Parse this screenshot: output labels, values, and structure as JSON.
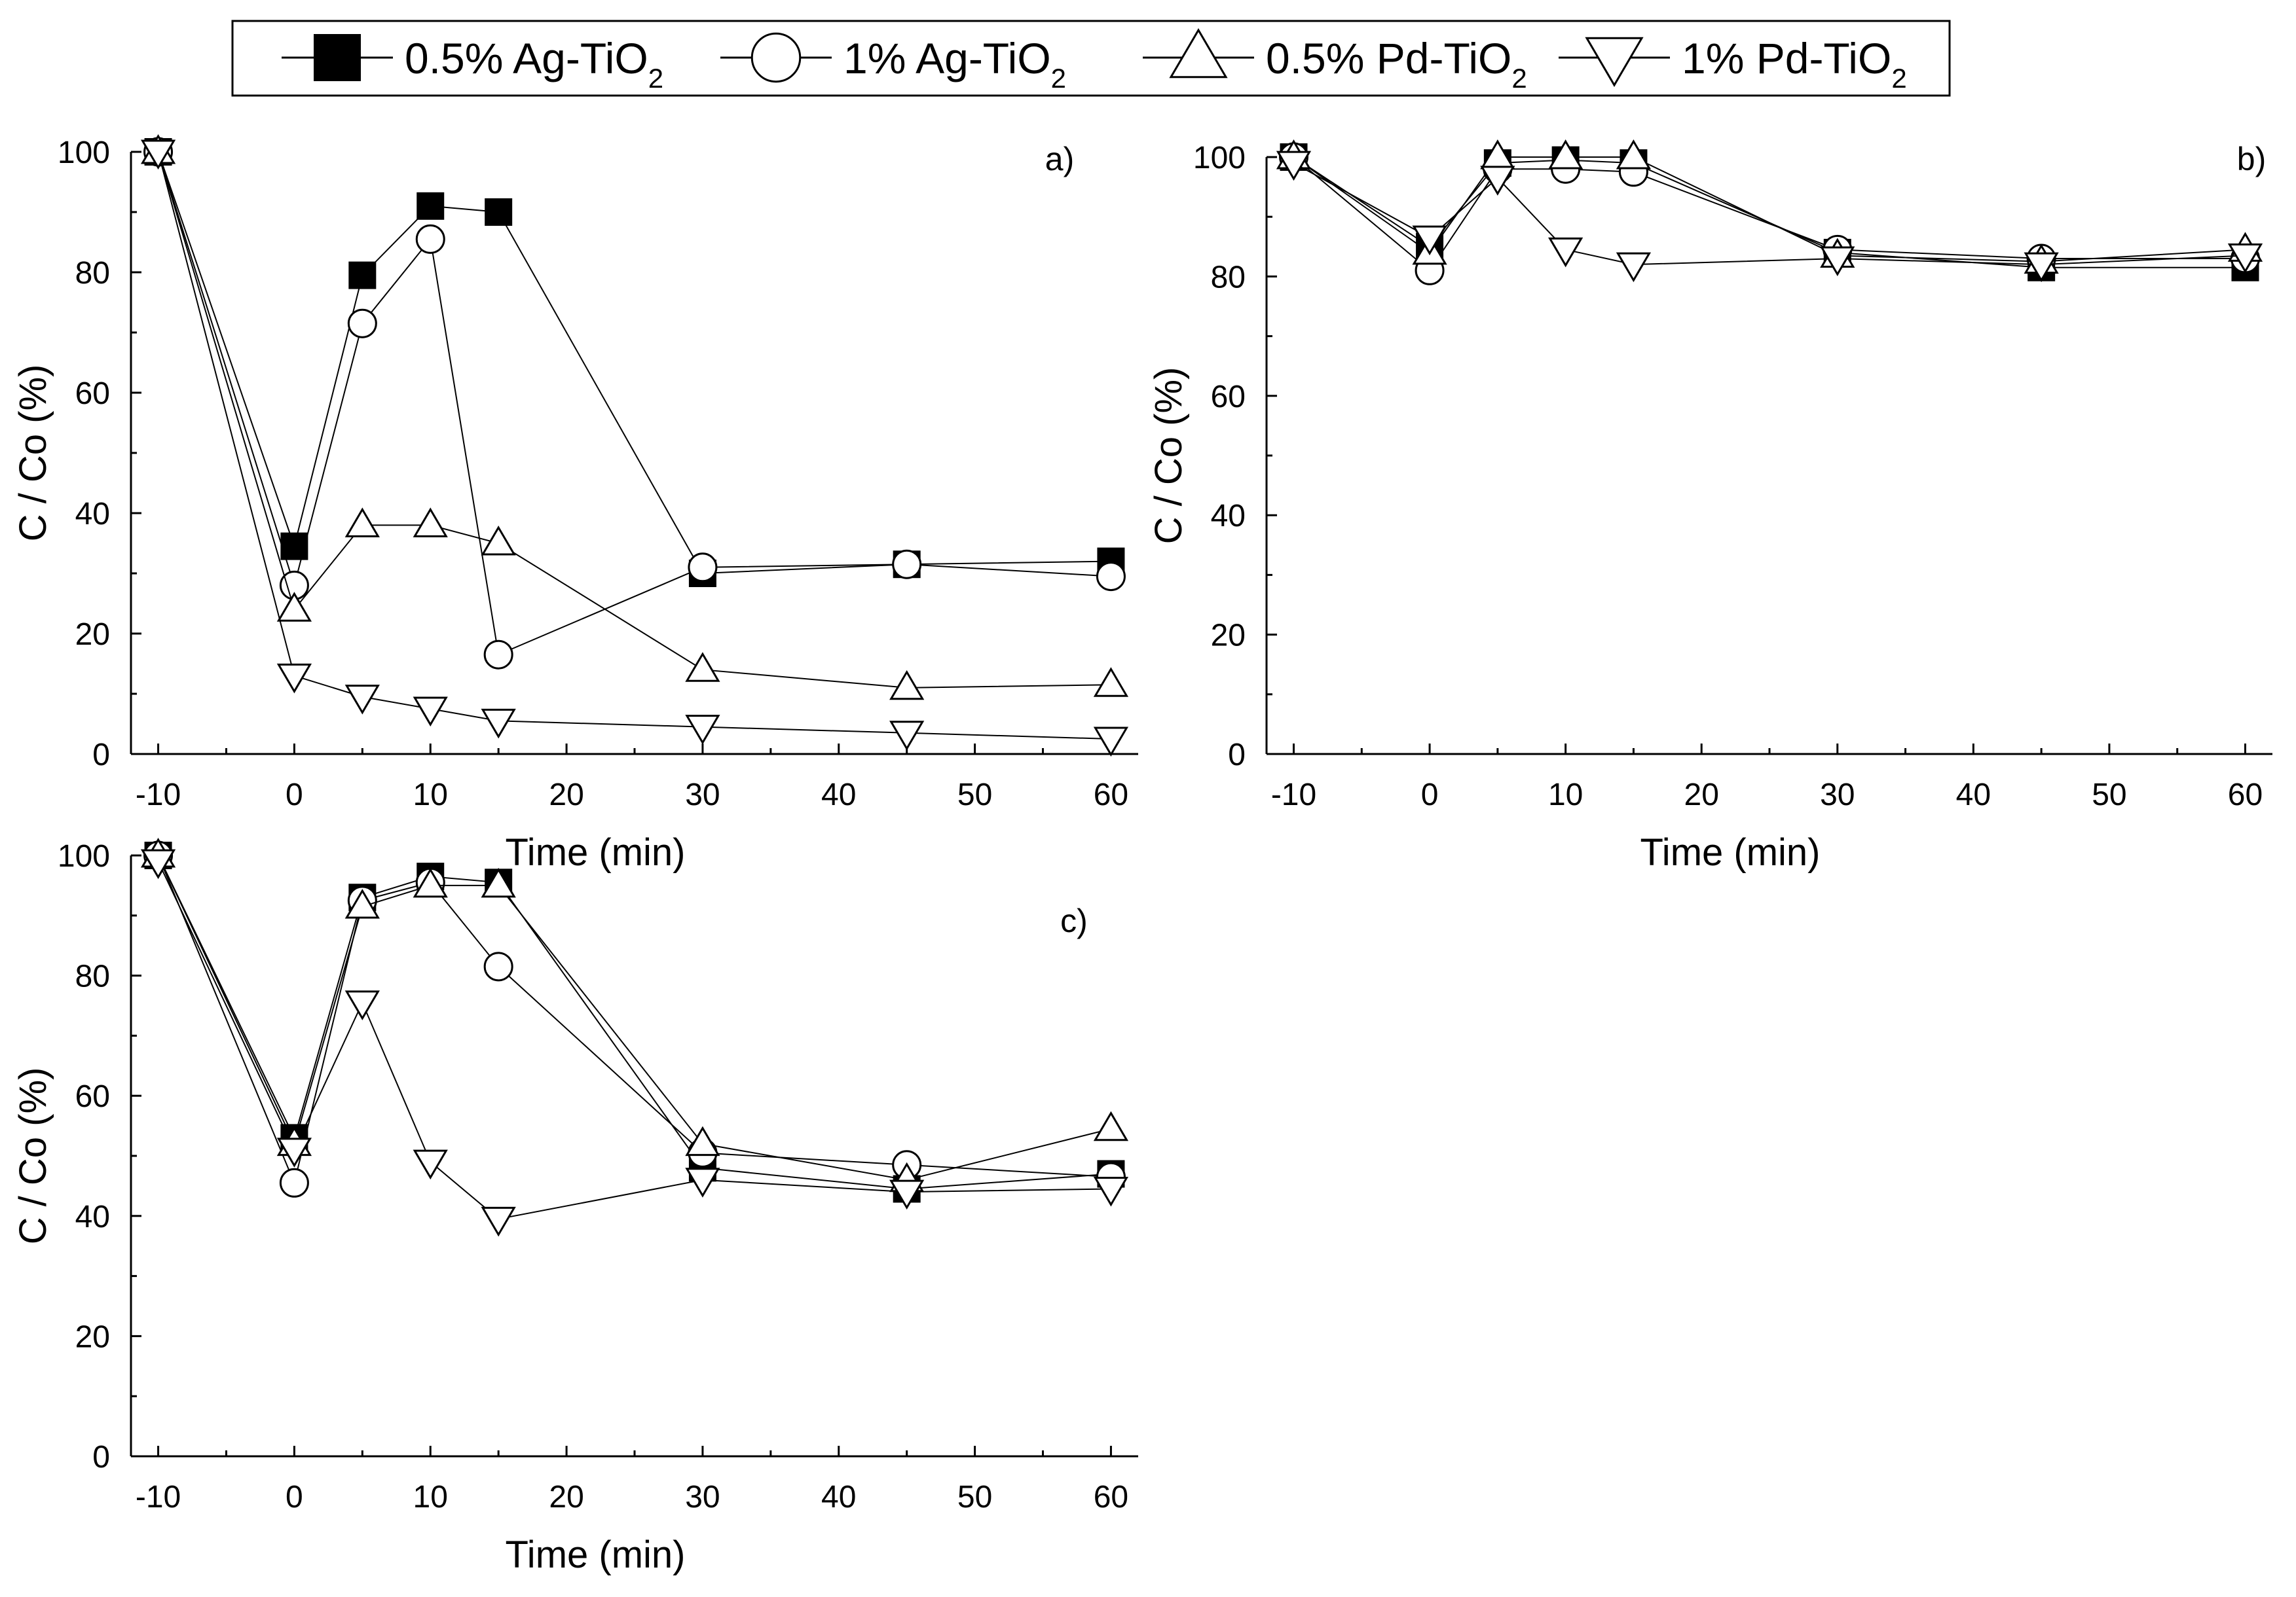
{
  "legend": [
    {
      "key": "ag05",
      "label": "0.5% Ag-TiO",
      "sub": "2",
      "marker": "square-filled"
    },
    {
      "key": "ag1",
      "label": "1% Ag-TiO",
      "sub": "2",
      "marker": "circle-open"
    },
    {
      "key": "pd05",
      "label": "0.5% Pd-TiO",
      "sub": "2",
      "marker": "triangle-up-open"
    },
    {
      "key": "pd1",
      "label": "1% Pd-TiO",
      "sub": "2",
      "marker": "triangle-down-open"
    }
  ],
  "chart_data": [
    {
      "type": "line",
      "panel": "a)",
      "xlabel": "Time (min)",
      "ylabel": "C / Co (%)",
      "xlim": [
        -12,
        62
      ],
      "ylim": [
        0,
        100
      ],
      "xticks": [
        -10,
        0,
        10,
        20,
        30,
        40,
        50,
        60
      ],
      "yticks": [
        0,
        20,
        40,
        60,
        80,
        100
      ],
      "x": [
        -10,
        0,
        5,
        10,
        15,
        30,
        45,
        60
      ],
      "series": [
        {
          "name": "0.5% Ag-TiO2",
          "key": "ag05",
          "values": [
            100,
            34.5,
            79.5,
            91,
            90,
            30,
            31.5,
            32
          ]
        },
        {
          "name": "1% Ag-TiO2",
          "key": "ag1",
          "values": [
            100,
            28,
            71.5,
            85.5,
            16.5,
            31,
            31.5,
            29.5
          ]
        },
        {
          "name": "0.5% Pd-TiO2",
          "key": "pd05",
          "values": [
            100,
            24,
            38,
            38,
            35,
            14,
            11,
            11.5
          ]
        },
        {
          "name": "1% Pd-TiO2",
          "key": "pd1",
          "values": [
            100,
            13,
            9.5,
            7.5,
            5.5,
            4.5,
            3.5,
            2.5
          ]
        }
      ]
    },
    {
      "type": "line",
      "panel": "b)",
      "xlabel": "Time (min)",
      "ylabel": "C / Co (%)",
      "xlim": [
        -12,
        62
      ],
      "ylim": [
        0,
        100
      ],
      "xticks": [
        -10,
        0,
        10,
        20,
        30,
        40,
        50,
        60
      ],
      "yticks": [
        0,
        20,
        40,
        60,
        80,
        100
      ],
      "x": [
        -10,
        0,
        5,
        10,
        15,
        30,
        45,
        60
      ],
      "series": [
        {
          "name": "0.5% Ag-TiO2",
          "key": "ag05",
          "values": [
            100,
            85,
            99,
            99.5,
            99,
            84,
            81.5,
            81.5
          ]
        },
        {
          "name": "1% Ag-TiO2",
          "key": "ag1",
          "values": [
            100,
            81,
            98,
            98,
            97.5,
            84.5,
            83,
            83
          ]
        },
        {
          "name": "0.5% Pd-TiO2",
          "key": "pd05",
          "values": [
            100,
            84,
            100,
            100,
            100,
            83.5,
            82.5,
            84.5
          ]
        },
        {
          "name": "1% Pd-TiO2",
          "key": "pd1",
          "values": [
            99,
            86.5,
            96.5,
            84.5,
            82,
            83,
            82,
            83.5
          ]
        }
      ]
    },
    {
      "type": "line",
      "panel": "c)",
      "xlabel": "Time (min)",
      "ylabel": "C / Co (%)",
      "xlim": [
        -12,
        62
      ],
      "ylim": [
        0,
        100
      ],
      "xticks": [
        -10,
        0,
        10,
        20,
        30,
        40,
        50,
        60
      ],
      "yticks": [
        0,
        20,
        40,
        60,
        80,
        100
      ],
      "x": [
        -10,
        0,
        5,
        10,
        15,
        30,
        45,
        60
      ],
      "series": [
        {
          "name": "0.5% Ag-TiO2",
          "key": "ag05",
          "values": [
            100,
            53,
            93,
            96.5,
            95.5,
            48,
            44.5,
            47
          ]
        },
        {
          "name": "1% Ag-TiO2",
          "key": "ag1",
          "values": [
            100,
            45.5,
            92.5,
            95.5,
            81.5,
            50.5,
            48.5,
            46.5
          ]
        },
        {
          "name": "0.5% Pd-TiO2",
          "key": "pd05",
          "values": [
            100,
            52,
            91.5,
            95,
            95,
            52,
            46,
            54.5
          ]
        },
        {
          "name": "1% Pd-TiO2",
          "key": "pd1",
          "values": [
            99,
            51,
            75.5,
            49,
            39.5,
            46,
            44,
            44.5
          ]
        }
      ]
    }
  ]
}
